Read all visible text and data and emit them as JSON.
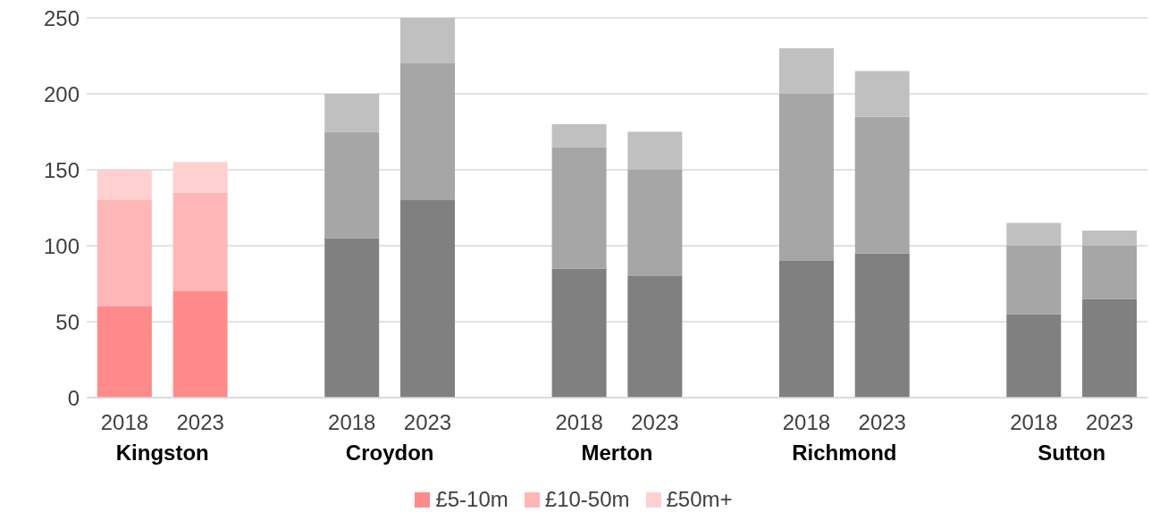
{
  "chart_data": {
    "type": "bar",
    "stacked": true,
    "categories": [
      "2018",
      "2023",
      null,
      "2018",
      "2023",
      null,
      "2018",
      "2023",
      null,
      "2018",
      "2023",
      null,
      "2018",
      "2023"
    ],
    "series": [
      {
        "name": "£5-10m",
        "color": "#ff8a8a",
        "colors": [
          "#ff8a8a",
          "#ff8a8a",
          null,
          "#808080",
          "#808080",
          null,
          "#808080",
          "#808080",
          null,
          "#808080",
          "#808080",
          null,
          "#808080",
          "#808080"
        ],
        "values": [
          60,
          70,
          null,
          105,
          130,
          null,
          85,
          80,
          null,
          90,
          95,
          null,
          55,
          65
        ]
      },
      {
        "name": "£10-50m",
        "color": "#ffb6b6",
        "colors": [
          "#ffb6b6",
          "#ffb6b6",
          null,
          "#a6a6a6",
          "#a6a6a6",
          null,
          "#a6a6a6",
          "#a6a6a6",
          null,
          "#a6a6a6",
          "#a6a6a6",
          null,
          "#a6a6a6",
          "#a6a6a6"
        ],
        "values": [
          70,
          65,
          null,
          70,
          90,
          null,
          80,
          70,
          null,
          110,
          90,
          null,
          45,
          35
        ]
      },
      {
        "name": "£50m+",
        "color": "#ffd0d0",
        "colors": [
          "#ffd0d0",
          "#ffd0d0",
          null,
          "#c0c0c0",
          "#c0c0c0",
          null,
          "#c0c0c0",
          "#c0c0c0",
          null,
          "#c0c0c0",
          "#c0c0c0",
          null,
          "#c0c0c0",
          "#c0c0c0"
        ],
        "values": [
          20,
          20,
          null,
          25,
          30,
          null,
          15,
          25,
          null,
          30,
          30,
          null,
          15,
          10
        ]
      }
    ],
    "annotations": [
      "Kingston",
      "Croydon",
      "Merton",
      "Richmond",
      "Sutton"
    ],
    "ylim": [
      0,
      250
    ],
    "yticks": [
      0,
      50,
      100,
      150,
      200,
      250
    ],
    "grid": "y",
    "legend": "bottom"
  }
}
